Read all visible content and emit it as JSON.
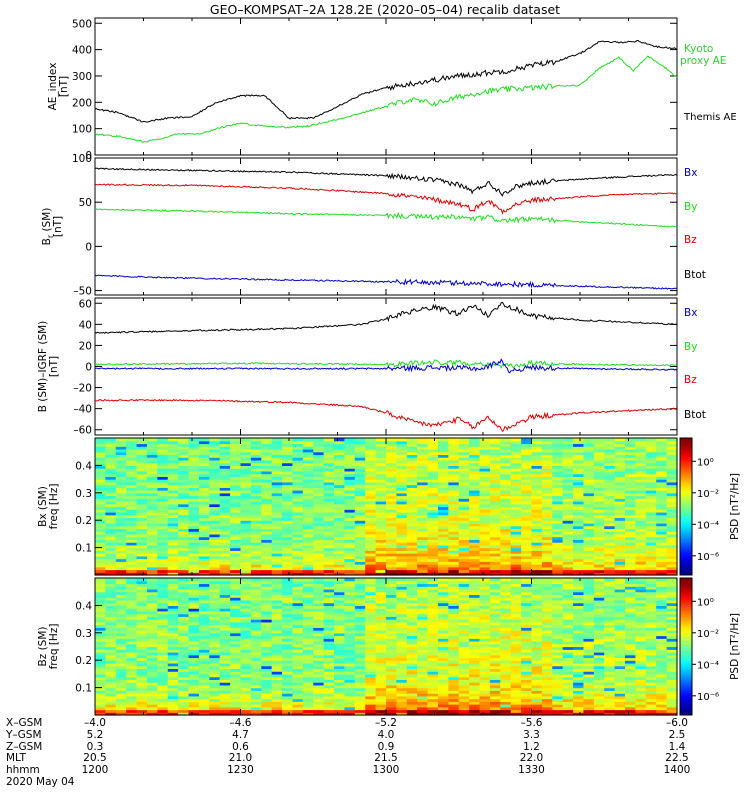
{
  "title": "GEO–KOMPSAT–2A 128.2E (2020–05–04) recalib dataset",
  "colors": {
    "black": "#000000",
    "red": "#dd0000",
    "green": "#22dd22",
    "blue": "#0000cc",
    "kyoto": "#33cc33"
  },
  "chart_data": [
    {
      "type": "line",
      "panel": "ae",
      "ylabel_line1": "AE_index",
      "ylabel_line2": "[nT]",
      "ylim": [
        0,
        520
      ],
      "yticks": [
        0,
        100,
        200,
        300,
        400,
        500
      ],
      "xlim": [
        "12:00",
        "14:00"
      ],
      "legend": [
        "Kyoto",
        "proxy AE",
        "Themis AE"
      ],
      "series": [
        {
          "name": "Kyoto proxy AE",
          "color": "green",
          "x": [
            "12:00",
            "12:05",
            "12:10",
            "12:13",
            "12:17",
            "12:22",
            "12:26",
            "12:30",
            "12:35",
            "12:40",
            "12:44",
            "12:50",
            "12:55",
            "13:00",
            "13:05",
            "13:10",
            "13:15",
            "13:20",
            "13:25",
            "13:30",
            "13:35",
            "13:40",
            "13:44",
            "13:48",
            "13:51",
            "13:54",
            "13:57",
            "14:00"
          ],
          "y": [
            80,
            70,
            50,
            60,
            80,
            82,
            105,
            120,
            110,
            105,
            110,
            135,
            160,
            185,
            210,
            195,
            220,
            240,
            250,
            255,
            262,
            265,
            330,
            370,
            320,
            375,
            340,
            295
          ]
        },
        {
          "name": "Themis AE",
          "color": "black",
          "x": [
            "12:00",
            "12:05",
            "12:10",
            "12:15",
            "12:20",
            "12:25",
            "12:30",
            "12:35",
            "12:40",
            "12:45",
            "12:50",
            "12:55",
            "13:00",
            "13:05",
            "13:10",
            "13:15",
            "13:20",
            "13:25",
            "13:30",
            "13:35",
            "13:40",
            "13:44",
            "13:48",
            "13:52",
            "13:56",
            "14:00"
          ],
          "y": [
            175,
            160,
            125,
            140,
            145,
            200,
            225,
            225,
            140,
            140,
            185,
            230,
            255,
            270,
            285,
            300,
            310,
            320,
            340,
            355,
            385,
            430,
            428,
            432,
            410,
            405
          ]
        }
      ]
    },
    {
      "type": "line",
      "panel": "b",
      "ylabel_line1": "B",
      "ylabel_sub": "r",
      "ylabel_paren": "(SM)",
      "ylabel_line2": "[nT]",
      "ylim": [
        -55,
        100
      ],
      "yticks": [
        -50,
        0,
        50,
        100
      ],
      "legend": [
        "Bx",
        "By",
        "Bz",
        "Btot"
      ],
      "series": [
        {
          "name": "Btot",
          "color": "black",
          "x": [
            "12:00",
            "12:20",
            "12:40",
            "13:00",
            "13:10",
            "13:15",
            "13:18",
            "13:21",
            "13:24",
            "13:27",
            "13:30",
            "13:35",
            "13:40",
            "13:50",
            "14:00"
          ],
          "y": [
            88,
            86,
            84,
            80,
            75,
            70,
            62,
            72,
            60,
            68,
            72,
            74,
            76,
            79,
            81
          ]
        },
        {
          "name": "Bz",
          "color": "red",
          "x": [
            "12:00",
            "12:20",
            "12:40",
            "13:00",
            "13:10",
            "13:15",
            "13:18",
            "13:21",
            "13:24",
            "13:27",
            "13:30",
            "13:35",
            "13:40",
            "13:50",
            "14:00"
          ],
          "y": [
            70,
            69,
            66,
            60,
            53,
            48,
            42,
            52,
            40,
            48,
            52,
            54,
            56,
            59,
            60
          ]
        },
        {
          "name": "By",
          "color": "green",
          "x": [
            "12:00",
            "12:20",
            "12:40",
            "13:00",
            "13:10",
            "13:15",
            "13:18",
            "13:21",
            "13:24",
            "13:30",
            "13:40",
            "13:50",
            "14:00"
          ],
          "y": [
            42,
            40,
            37,
            35,
            33,
            33,
            31,
            33,
            29,
            31,
            28,
            25,
            22
          ]
        },
        {
          "name": "Bx",
          "color": "blue",
          "x": [
            "12:00",
            "12:20",
            "12:40",
            "13:00",
            "13:20",
            "13:40",
            "14:00"
          ],
          "y": [
            -33,
            -36,
            -38,
            -40,
            -42,
            -45,
            -48
          ]
        }
      ]
    },
    {
      "type": "line",
      "panel": "dbigrf",
      "ylabel_line1": "B (SM)–IGRF (SM)",
      "ylabel_line2": "[nT]",
      "ylim": [
        -65,
        65
      ],
      "yticks": [
        -60,
        -40,
        -20,
        0,
        20,
        40,
        60
      ],
      "legend": [
        "Bx",
        "By",
        "Bz",
        "Btot"
      ],
      "series": [
        {
          "name": "Btot",
          "color": "black",
          "x": [
            "12:00",
            "12:20",
            "12:40",
            "12:55",
            "13:00",
            "13:05",
            "13:10",
            "13:15",
            "13:18",
            "13:21",
            "13:24",
            "13:27",
            "13:30",
            "13:40",
            "13:50",
            "14:00"
          ],
          "y": [
            32,
            34,
            36,
            40,
            45,
            52,
            56,
            50,
            58,
            48,
            60,
            54,
            48,
            44,
            42,
            40
          ]
        },
        {
          "name": "By",
          "color": "green",
          "x": [
            "12:00",
            "12:30",
            "13:00",
            "13:10",
            "13:20",
            "13:25",
            "13:30",
            "13:40",
            "14:00"
          ],
          "y": [
            2,
            3,
            2,
            4,
            3,
            0,
            3,
            2,
            1
          ]
        },
        {
          "name": "Bx",
          "color": "blue",
          "x": [
            "12:00",
            "12:30",
            "13:00",
            "13:10",
            "13:20",
            "13:24",
            "13:25",
            "13:30",
            "13:40",
            "14:00"
          ],
          "y": [
            -2,
            -2,
            -2,
            -1,
            -2,
            6,
            -4,
            -1,
            -2,
            -3
          ]
        },
        {
          "name": "Bz",
          "color": "red",
          "x": [
            "12:00",
            "12:20",
            "12:40",
            "12:55",
            "13:00",
            "13:05",
            "13:10",
            "13:15",
            "13:18",
            "13:21",
            "13:24",
            "13:27",
            "13:30",
            "13:40",
            "13:50",
            "14:00"
          ],
          "y": [
            -32,
            -32,
            -34,
            -38,
            -44,
            -52,
            -56,
            -50,
            -58,
            -48,
            -60,
            -54,
            -48,
            -44,
            -42,
            -40
          ]
        }
      ]
    },
    {
      "type": "heatmap",
      "panel": "spec_bx",
      "ylabel_line1": "Bx (SM)",
      "ylabel_line2": "freq [Hz]",
      "ylim": [
        0,
        0.5
      ],
      "yticks": [
        0.1,
        0.2,
        0.3,
        0.4
      ],
      "colorbar_label": "PSD [nT²/Hz]",
      "colorbar_ticks": [
        "10⁰",
        "10⁻²",
        "10⁻⁴",
        "10⁻⁶"
      ],
      "seed": 7
    },
    {
      "type": "heatmap",
      "panel": "spec_bz",
      "ylabel_line1": "Bz (SM)",
      "ylabel_line2": "freq [Hz]",
      "ylim": [
        0,
        0.5
      ],
      "yticks": [
        0.1,
        0.2,
        0.3,
        0.4
      ],
      "colorbar_label": "PSD [nT²/Hz]",
      "colorbar_ticks": [
        "10⁰",
        "10⁻²",
        "10⁻⁴",
        "10⁻⁶"
      ],
      "seed": 13
    }
  ],
  "ephemeris": {
    "labels": [
      "X–GSM",
      "Y–GSM",
      "Z–GSM",
      "MLT",
      "hhmm",
      "2020 May 04"
    ],
    "columns": [
      [
        "–4.0",
        "5.2",
        "0.3",
        "20.5",
        "1200"
      ],
      [
        "–4.6",
        "4.7",
        "0.6",
        "21.0",
        "1230"
      ],
      [
        "–5.2",
        "4.0",
        "0.9",
        "21.5",
        "1300"
      ],
      [
        "–5.6",
        "3.3",
        "1.2",
        "22.0",
        "1330"
      ],
      [
        "–6.0",
        "2.5",
        "1.4",
        "22.5",
        "1400"
      ]
    ]
  }
}
